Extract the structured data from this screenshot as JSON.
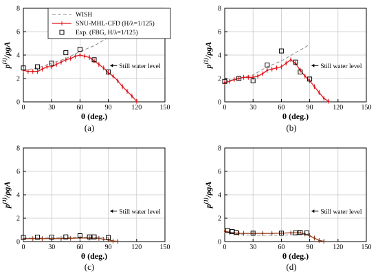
{
  "figure": {
    "legend": {
      "wish": "WISH",
      "cfd": "SNU-MHL-CFD (H/λ=1/125)",
      "exp": "Exp. (FBG, H/λ=1/125)"
    },
    "colors": {
      "wish": "#888888",
      "cfd": "#e0141b",
      "exp": "#000000",
      "cfd_c": "#8b3a1a",
      "cfd_d": "#8b3a1a"
    }
  },
  "chart_data": [
    {
      "type": "line",
      "panel": "(a)",
      "xlabel": "θ (deg.)",
      "ylabel": "p(1)/ρgA",
      "xlim": [
        0,
        150
      ],
      "ylim": [
        0,
        8
      ],
      "xticks": [
        "0",
        "30",
        "60",
        "90",
        "120",
        "150"
      ],
      "yticks": [
        "0",
        "2",
        "4",
        "6",
        "8"
      ],
      "annotation": "Still water level",
      "annotation_y": 3.1,
      "series": [
        {
          "name": "WISH",
          "x": [
            0,
            15,
            30,
            45,
            60,
            75,
            90
          ],
          "y": [
            2.7,
            2.9,
            3.3,
            3.7,
            4.3,
            4.8,
            5.5
          ]
        },
        {
          "name": "SNU-MHL-CFD (H/λ=1/125)",
          "x": [
            0,
            5,
            10,
            15,
            20,
            25,
            30,
            35,
            40,
            45,
            50,
            55,
            60,
            65,
            70,
            75,
            80,
            85,
            90,
            95,
            100,
            105,
            110,
            115,
            120
          ],
          "y": [
            2.7,
            2.6,
            2.6,
            2.6,
            2.8,
            3.0,
            3.0,
            3.2,
            3.4,
            3.6,
            3.7,
            3.9,
            4.0,
            3.9,
            3.8,
            3.5,
            3.2,
            2.9,
            2.5,
            2.2,
            1.8,
            1.3,
            0.9,
            0.5,
            0.05
          ]
        },
        {
          "name": "Exp. (FBG, H/λ=1/125)",
          "x": [
            0,
            15,
            30,
            45,
            60,
            75,
            90
          ],
          "y": [
            2.9,
            3.0,
            3.3,
            4.2,
            4.5,
            3.6,
            2.55
          ]
        }
      ]
    },
    {
      "type": "line",
      "panel": "(b)",
      "xlabel": "θ (deg.)",
      "ylabel": "p(1)/ρgA",
      "xlim": [
        0,
        150
      ],
      "ylim": [
        0,
        8
      ],
      "xticks": [
        "0",
        "30",
        "60",
        "90",
        "120",
        "150"
      ],
      "yticks": [
        "0",
        "2",
        "4",
        "6",
        "8"
      ],
      "annotation": "Still water level",
      "annotation_y": 3.1,
      "series": [
        {
          "name": "WISH",
          "x": [
            0,
            15,
            30,
            45,
            60,
            75,
            90
          ],
          "y": [
            1.75,
            2.0,
            2.3,
            3.0,
            3.5,
            4.2,
            4.9
          ]
        },
        {
          "name": "SNU-MHL-CFD (H/λ=1/125)",
          "x": [
            0,
            5,
            10,
            15,
            20,
            25,
            30,
            35,
            40,
            45,
            50,
            55,
            60,
            65,
            70,
            75,
            80,
            85,
            90,
            95,
            100,
            105,
            110
          ],
          "y": [
            1.65,
            1.75,
            1.9,
            2.0,
            2.1,
            2.1,
            2.1,
            2.2,
            2.4,
            2.7,
            2.8,
            2.9,
            3.0,
            3.3,
            3.6,
            3.3,
            2.7,
            2.2,
            1.8,
            1.3,
            0.8,
            0.3,
            0.05
          ]
        },
        {
          "name": "Exp. (FBG, H/λ=1/125)",
          "x": [
            0,
            15,
            30,
            45,
            60,
            75,
            80,
            90
          ],
          "y": [
            1.75,
            2.0,
            1.8,
            3.15,
            4.35,
            3.4,
            2.55,
            1.95
          ]
        }
      ]
    },
    {
      "type": "line",
      "panel": "(c)",
      "xlabel": "θ (deg.)",
      "ylabel": "p(1)/ρgA",
      "xlim": [
        0,
        150
      ],
      "ylim": [
        0,
        8
      ],
      "xticks": [
        "0",
        "30",
        "60",
        "90",
        "120",
        "150"
      ],
      "yticks": [
        "0",
        "2",
        "4",
        "6",
        "8"
      ],
      "annotation": "Still water level",
      "annotation_y": 2.6,
      "series": [
        {
          "name": "WISH",
          "x": [
            0,
            15,
            30,
            45,
            60,
            75,
            90
          ],
          "y": [
            0.3,
            0.3,
            0.32,
            0.35,
            0.38,
            0.38,
            0.35
          ]
        },
        {
          "name": "SNU-MHL-CFD (H/λ=1/125)",
          "x": [
            0,
            10,
            20,
            30,
            40,
            50,
            60,
            70,
            80,
            85,
            90,
            95,
            100
          ],
          "y": [
            0.25,
            0.25,
            0.25,
            0.25,
            0.25,
            0.28,
            0.3,
            0.3,
            0.28,
            0.2,
            0.15,
            0.05,
            0.02
          ]
        },
        {
          "name": "Exp. (FBG, H/λ=1/125)",
          "x": [
            0,
            15,
            30,
            45,
            60,
            70,
            75,
            90
          ],
          "y": [
            0.35,
            0.38,
            0.38,
            0.4,
            0.5,
            0.4,
            0.4,
            0.35
          ]
        }
      ]
    },
    {
      "type": "line",
      "panel": "(d)",
      "xlabel": "θ (deg.)",
      "ylabel": "p(1)/ρgA",
      "xlim": [
        0,
        150
      ],
      "ylim": [
        0,
        8
      ],
      "xticks": [
        "0",
        "30",
        "60",
        "90",
        "120",
        "150"
      ],
      "yticks": [
        "0",
        "2",
        "4",
        "6",
        "8"
      ],
      "annotation": "Still water level",
      "annotation_y": 2.6,
      "series": [
        {
          "name": "WISH",
          "x": [
            0,
            15,
            30,
            45,
            60,
            75,
            90
          ],
          "y": [
            0.9,
            0.6,
            0.55,
            0.55,
            0.55,
            0.6,
            0.65
          ]
        },
        {
          "name": "SNU-MHL-CFD (H/λ=1/125)",
          "x": [
            0,
            5,
            10,
            15,
            20,
            30,
            40,
            50,
            60,
            70,
            80,
            85,
            90,
            95,
            100,
            105
          ],
          "y": [
            0.9,
            0.8,
            0.75,
            0.7,
            0.7,
            0.7,
            0.7,
            0.7,
            0.72,
            0.75,
            0.75,
            0.65,
            0.5,
            0.3,
            0.1,
            0.02
          ]
        },
        {
          "name": "Exp. (FBG, H/λ=1/125)",
          "x": [
            3,
            8,
            12,
            30,
            60,
            75,
            80,
            87
          ],
          "y": [
            0.95,
            0.85,
            0.78,
            0.72,
            0.72,
            0.75,
            0.78,
            0.75
          ]
        }
      ]
    }
  ]
}
